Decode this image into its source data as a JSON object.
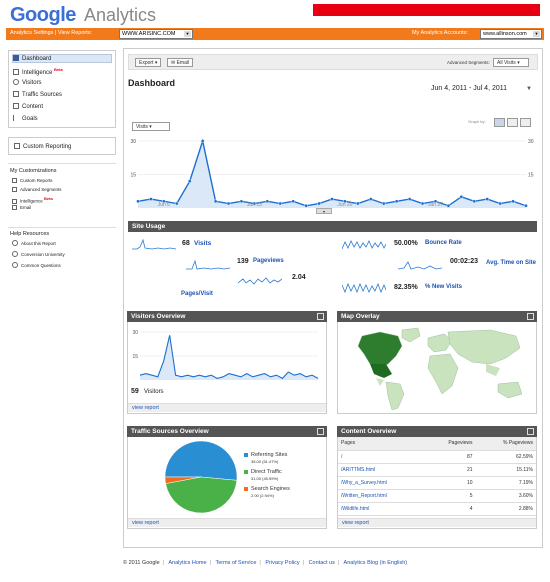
{
  "header": {
    "logo_google": "Google",
    "logo_analytics": "Analytics",
    "nav_left": "Analytics Settings  |  View Reports:",
    "site_select": "WWW.ARISINC.COM",
    "accounts_label": "My Analytics Accounts:",
    "account_select": "www.allinson.com"
  },
  "sidebar": {
    "nav": [
      {
        "label": "Dashboard",
        "icon": "dashboard-icon"
      },
      {
        "label": "Intelligence",
        "icon": "intelligence-icon",
        "badge": "Beta"
      },
      {
        "label": "Visitors",
        "icon": "visitors-icon"
      },
      {
        "label": "Traffic Sources",
        "icon": "traffic-sources-icon"
      },
      {
        "label": "Content",
        "icon": "content-icon"
      },
      {
        "label": "Goals",
        "icon": "goals-icon"
      }
    ],
    "custom_reporting": "Custom Reporting",
    "customizations_title": "My Customizations",
    "customizations": [
      {
        "label": "Custom Reports"
      },
      {
        "label": "Advanced Segments"
      },
      {
        "label": "Intelligence",
        "badge": "Beta"
      },
      {
        "label": "Email"
      }
    ],
    "help_title": "Help Resources",
    "help": [
      {
        "label": "About this Report"
      },
      {
        "label": "Conversion University"
      },
      {
        "label": "Common Questions"
      }
    ]
  },
  "toolbar": {
    "export": "Export",
    "email": "Email",
    "advanced_segments_label": "Advanced Segments:",
    "segment_select": "All Visits"
  },
  "dashboard": {
    "title": "Dashboard",
    "date_range": "Jun 4, 2011 - Jul 4, 2011",
    "graph_by": "Graph by:",
    "metric_select": "Visits"
  },
  "site_usage": {
    "title": "Site Usage",
    "visits_value": "68",
    "visits_label": "Visits",
    "pageviews_value": "139",
    "pageviews_label": "Pageviews",
    "pages_visit_value": "2.04",
    "pages_visit_label": "Pages/Visit",
    "bounce_value": "50.00%",
    "bounce_label": "Bounce Rate",
    "time_value": "00:02:23",
    "time_label": "Avg. Time on Site",
    "new_visits_value": "82.35%",
    "new_visits_label": "% New Visits"
  },
  "visitors_overview": {
    "title": "Visitors Overview",
    "count": "59",
    "count_label": "Visitors",
    "view_report": "view report"
  },
  "map_overlay": {
    "title": "Map Overlay"
  },
  "traffic_sources": {
    "title": "Traffic Sources Overview",
    "view_report": "view report",
    "legend": [
      {
        "name": "Referring Sites",
        "detail": "35.00 (51.47%)",
        "color": "#2a8fd2"
      },
      {
        "name": "Direct Traffic",
        "detail": "31.00 (45.59%)",
        "color": "#49b148"
      },
      {
        "name": "Search Engines",
        "detail": "2.00 (2.94%)",
        "color": "#f26c1d"
      }
    ]
  },
  "content_overview": {
    "title": "Content Overview",
    "view_report": "view report",
    "columns": [
      "Pages",
      "Pageviews",
      "% Pageviews"
    ],
    "rows": [
      [
        "/",
        "87",
        "62.59%"
      ],
      [
        "/ARITTMS.html",
        "21",
        "15.11%"
      ],
      [
        "/Why_a_Survey.html",
        "10",
        "7.19%"
      ],
      [
        "/Written_Report.html",
        "5",
        "3.60%"
      ],
      [
        "/Wildlife.html",
        "4",
        "2.88%"
      ]
    ]
  },
  "chart_data": [
    {
      "type": "area",
      "ylim": [
        0,
        30
      ],
      "y_ticks": [
        "30",
        "15"
      ],
      "x_labels": [
        "Jun 6",
        "Jun 13",
        "Jun 20",
        "Jun 27"
      ],
      "values": [
        3,
        4,
        3,
        2,
        12,
        30,
        3,
        2,
        3,
        2,
        3,
        2,
        3,
        1,
        2,
        4,
        3,
        2,
        4,
        2,
        3,
        4,
        2,
        3,
        1,
        5,
        3,
        4,
        2,
        3,
        1
      ]
    },
    {
      "type": "line",
      "ylim": [
        0,
        30
      ],
      "y_ticks": [
        "30",
        "15"
      ],
      "values": [
        3,
        4,
        3,
        2,
        12,
        28,
        3,
        2,
        3,
        2,
        3,
        2,
        3,
        1,
        2,
        4,
        3,
        2,
        4,
        2,
        3,
        4,
        2,
        3,
        1,
        5,
        3,
        4,
        2,
        3,
        1
      ]
    },
    {
      "type": "pie",
      "categories": [
        "Referring Sites",
        "Direct Traffic",
        "Search Engines"
      ],
      "values": [
        35,
        31,
        2
      ]
    }
  ],
  "footer": {
    "links": [
      "© 2011 Google",
      "Analytics Home",
      "Terms of Service",
      "Privacy Policy",
      "Contact us",
      "Analytics Blog (in English)"
    ]
  }
}
